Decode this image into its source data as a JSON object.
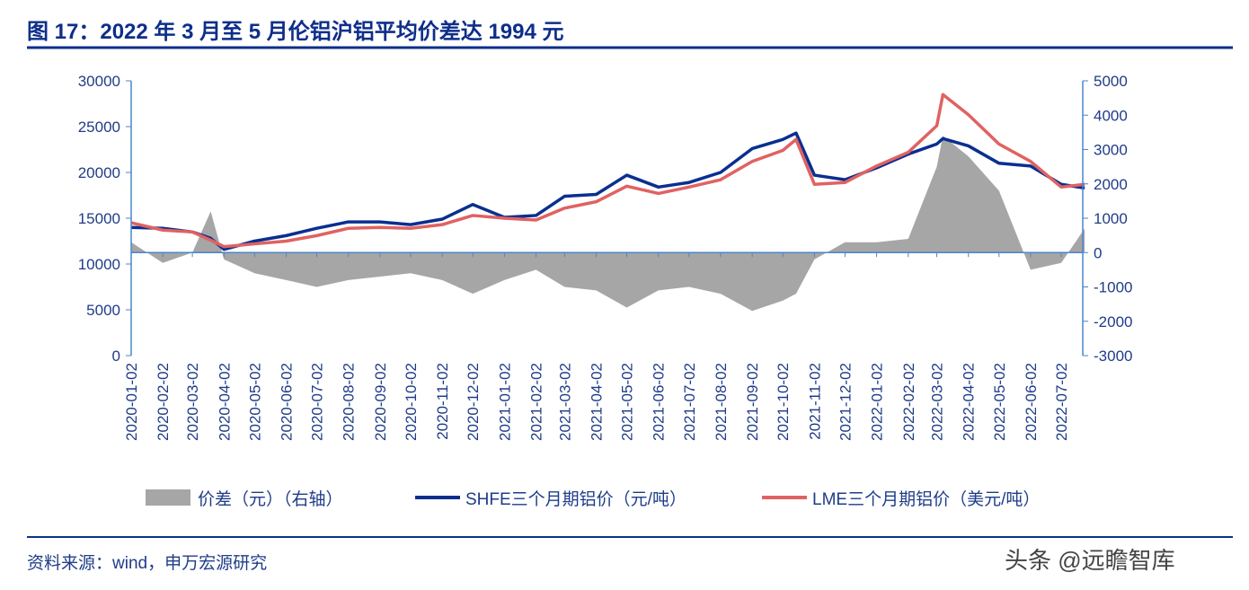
{
  "title": "图 17：2022 年 3 月至 5 月伦铝沪铝平均价差达 1994 元",
  "source": "资料来源：wind，申万宏源研究",
  "watermark": "头条 @远瞻智库",
  "colors": {
    "title": "#0d2e8a",
    "shfe": "#0a2f8f",
    "lme": "#e06262",
    "spread": "#a6a6a6",
    "axis": "#4a86c8"
  },
  "chart_data": {
    "type": "line",
    "left_axis": {
      "ylim": [
        0,
        30000
      ],
      "ticks": [
        "0",
        "5000",
        "10000",
        "15000",
        "20000",
        "25000",
        "30000"
      ]
    },
    "right_axis": {
      "ylim": [
        -3000,
        5000
      ],
      "ticks": [
        "-3000",
        "-2000",
        "-1000",
        "0",
        "1000",
        "2000",
        "3000",
        "4000",
        "5000"
      ]
    },
    "x_ticks": [
      "2020-01-02",
      "2020-02-02",
      "2020-03-02",
      "2020-04-02",
      "2020-05-02",
      "2020-06-02",
      "2020-07-02",
      "2020-08-02",
      "2020-09-02",
      "2020-10-02",
      "2020-11-02",
      "2020-12-02",
      "2021-01-02",
      "2021-02-02",
      "2021-03-02",
      "2021-04-02",
      "2021-05-02",
      "2021-06-02",
      "2021-07-02",
      "2021-08-02",
      "2021-09-02",
      "2021-10-02",
      "2021-11-02",
      "2021-12-02",
      "2022-01-02",
      "2022-02-02",
      "2022-03-02",
      "2022-04-02",
      "2022-05-02",
      "2022-06-02",
      "2022-07-02"
    ],
    "x": [
      "2020-01-02",
      "2020-02-02",
      "2020-03-02",
      "2020-03-20",
      "2020-04-02",
      "2020-05-02",
      "2020-06-02",
      "2020-07-02",
      "2020-08-02",
      "2020-09-02",
      "2020-10-02",
      "2020-11-02",
      "2020-12-02",
      "2021-01-02",
      "2021-02-02",
      "2021-03-02",
      "2021-04-02",
      "2021-05-02",
      "2021-06-02",
      "2021-07-02",
      "2021-08-02",
      "2021-09-02",
      "2021-10-02",
      "2021-10-15",
      "2021-11-02",
      "2021-12-02",
      "2022-01-02",
      "2022-02-02",
      "2022-03-02",
      "2022-03-08",
      "2022-04-02",
      "2022-05-02",
      "2022-06-02",
      "2022-07-02",
      "2022-07-25"
    ],
    "series": [
      {
        "name": "价差（元）（右轴）",
        "type": "area",
        "axis": "right",
        "values": [
          300,
          -300,
          0,
          1200,
          -200,
          -600,
          -800,
          -1000,
          -800,
          -700,
          -600,
          -800,
          -1200,
          -800,
          -500,
          -1000,
          -1100,
          -1600,
          -1100,
          -1000,
          -1200,
          -1700,
          -1400,
          -1200,
          -200,
          300,
          300,
          400,
          2500,
          3400,
          2800,
          1800,
          -500,
          -300,
          700
        ]
      },
      {
        "name": "SHFE三个月期铝价（元/吨）",
        "type": "line",
        "axis": "left",
        "values": [
          14000,
          13900,
          13500,
          12800,
          11600,
          12500,
          13100,
          13900,
          14600,
          14600,
          14300,
          14900,
          16500,
          15100,
          15300,
          17400,
          17600,
          19700,
          18400,
          18900,
          20000,
          22600,
          23600,
          24300,
          19700,
          19200,
          20500,
          22000,
          23100,
          23700,
          22900,
          21000,
          20700,
          18700,
          18300
        ]
      },
      {
        "name": "LME三个月期铝价（美元/吨）",
        "type": "line",
        "axis": "left",
        "values": [
          14500,
          13700,
          13500,
          12600,
          11900,
          12200,
          12500,
          13100,
          13900,
          14000,
          13900,
          14300,
          15300,
          15000,
          14800,
          16100,
          16800,
          18500,
          17700,
          18400,
          19200,
          21200,
          22400,
          23600,
          18700,
          18900,
          20700,
          22200,
          25100,
          28500,
          26300,
          23100,
          21200,
          18400,
          18700
        ]
      }
    ],
    "legend_position": "bottom",
    "grid": false
  }
}
